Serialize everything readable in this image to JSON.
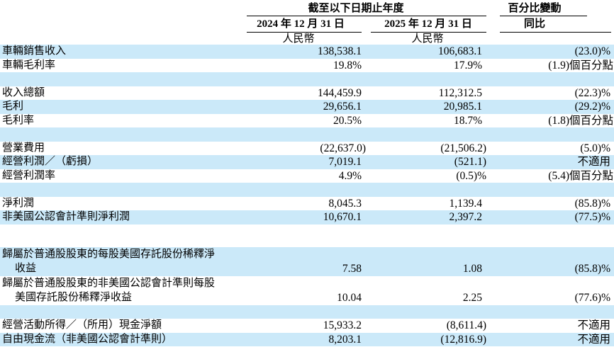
{
  "table": {
    "header": {
      "period_group_label": "截至以下日期止年度",
      "change_group_label": "百分比變動",
      "column_2024_label": "2024 年 12 月 31 日",
      "column_2025_label": "2025 年 12 月 31 日",
      "change_column_label": "同比",
      "currency_label_2024": "人民幣",
      "currency_label_2025": "人民幣"
    },
    "rows": [
      {
        "label": "車輛銷售收入",
        "value_2024": "138,538.1",
        "value_2025": "106,683.1",
        "yoy_change": "(23.0)%",
        "shaded": true
      },
      {
        "label": "車輛毛利率",
        "value_2024": "19.8%",
        "value_2025": "17.9%",
        "yoy_change": "(1.9)個百分點",
        "shaded": false
      },
      {
        "blank": true,
        "shaded": true
      },
      {
        "label": "收入總額",
        "value_2024": "144,459.9",
        "value_2025": "112,312.5",
        "yoy_change": "(22.3)%",
        "shaded": false
      },
      {
        "label": "毛利",
        "value_2024": "29,656.1",
        "value_2025": "20,985.1",
        "yoy_change": "(29.2)%",
        "shaded": true
      },
      {
        "label": "毛利率",
        "value_2024": "20.5%",
        "value_2025": "18.7%",
        "yoy_change": "(1.8)個百分點",
        "shaded": false
      },
      {
        "blank": true,
        "shaded": true
      },
      {
        "label": "營業費用",
        "value_2024": "(22,637.0)",
        "value_2025": "(21,506.2)",
        "yoy_change": "(5.0)%",
        "shaded": false
      },
      {
        "label": "經營利潤／（虧損）",
        "value_2024": "7,019.1",
        "value_2025": "(521.1)",
        "yoy_change": "不適用",
        "shaded": true
      },
      {
        "label": "經營利潤率",
        "value_2024": "4.9%",
        "value_2025": "(0.5)%",
        "yoy_change": "(5.4)個百分點",
        "shaded": false
      },
      {
        "blank": true,
        "shaded": true
      },
      {
        "label": "淨利潤",
        "value_2024": "8,045.3",
        "value_2025": "1,139.4",
        "yoy_change": "(85.8)%",
        "shaded": false
      },
      {
        "label": "非美國公認會計準則淨利潤",
        "value_2024": "10,670.1",
        "value_2025": "2,397.2",
        "yoy_change": "(77.5)%",
        "shaded": true
      },
      {
        "blank": true,
        "shaded": false,
        "tall": true
      },
      {
        "label": "歸屬於普通股股東的每股美國存託股份稀釋淨",
        "label_line2": "收益",
        "value_2024": "7.58",
        "value_2025": "1.08",
        "yoy_change": "(85.8)%",
        "shaded": true
      },
      {
        "label": "歸屬於普通股股東的非美國公認會計準則每股",
        "label_line2": "美國存託股份稀釋淨收益",
        "value_2024": "10.04",
        "value_2025": "2.25",
        "yoy_change": "(77.6)%",
        "shaded": false
      },
      {
        "blank": true,
        "shaded": true
      },
      {
        "label": "經營活動所得／（所用）現金淨額",
        "value_2024": "15,933.2",
        "value_2025": "(8,611.4)",
        "yoy_change": "不適用",
        "shaded": false
      },
      {
        "label": "自由現金流（非美國公認會計準則）",
        "value_2024": "8,203.1",
        "value_2025": "(12,816.9)",
        "yoy_change": "不適用",
        "shaded": true
      }
    ]
  },
  "colors": {
    "row_shading": "#cbe9f9",
    "text": "#000000",
    "rule": "#000000"
  }
}
